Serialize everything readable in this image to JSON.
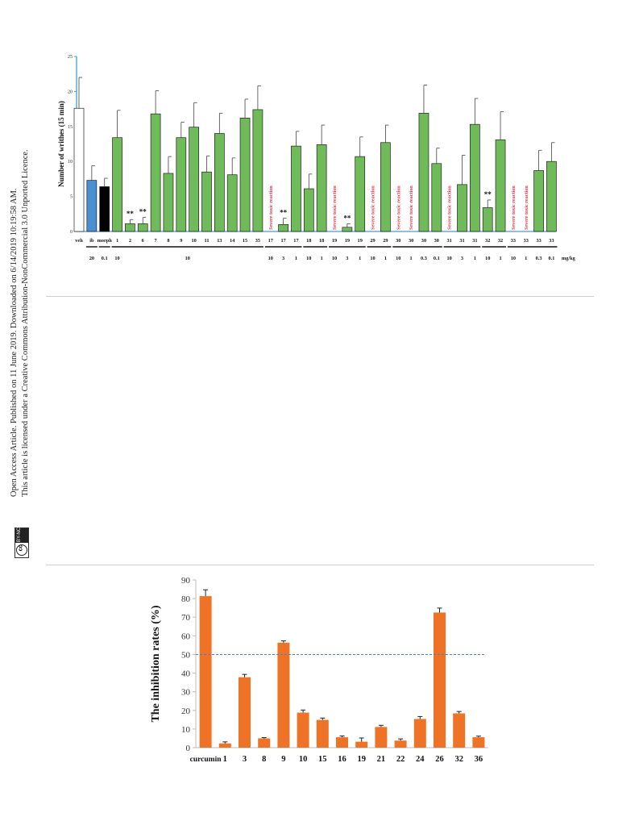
{
  "side": {
    "line1": "Open Access Article. Published on 11 June 2019. Downloaded on 6/14/2019 10:19:58 AM.",
    "line2": "This article is licensed under a Creative Commons Attribution-NonCommercial 3.0 Unported Licence.",
    "badge_cc": "cc",
    "badge_text": "BY-NC"
  },
  "chart_data": [
    {
      "type": "bar",
      "ylabel": "Number   of writhes (15 min)",
      "ylim": [
        0,
        25
      ],
      "yticks": [
        0,
        5,
        10,
        15,
        20,
        25
      ],
      "unit_label": "mg/kg",
      "toxic_label": "Severe toxic reaction",
      "colors": {
        "veh": "#ffffff",
        "ib": "#4a8fd0",
        "morph": "#000000",
        "compound": "#6fba59",
        "toxic": "#e8364a",
        "axis": "#3aa0d8"
      },
      "bars": [
        {
          "cat": "veh",
          "dose": "",
          "value": 17.6,
          "err": 4.4,
          "color": "veh"
        },
        {
          "cat": "ib",
          "dose": "20",
          "value": 7.3,
          "err": 2.1,
          "color": "ib"
        },
        {
          "cat": "morph",
          "dose": "0.1",
          "value": 6.4,
          "err": 1.2,
          "color": "morph"
        },
        {
          "cat": "1",
          "dose": "10",
          "value": 13.4,
          "err": 3.9,
          "color": "compound"
        },
        {
          "cat": "2",
          "dose": "10",
          "value": 1.1,
          "err": 0.6,
          "color": "compound",
          "sig": "**"
        },
        {
          "cat": "6",
          "dose": "10",
          "value": 1.1,
          "err": 0.9,
          "color": "compound",
          "sig": "**"
        },
        {
          "cat": "7",
          "dose": "10",
          "value": 16.8,
          "err": 3.3,
          "color": "compound"
        },
        {
          "cat": "8",
          "dose": "10",
          "value": 8.3,
          "err": 2.4,
          "color": "compound"
        },
        {
          "cat": "9",
          "dose": "10",
          "value": 13.4,
          "err": 2.2,
          "color": "compound"
        },
        {
          "cat": "10",
          "dose": "10",
          "value": 14.9,
          "err": 3.5,
          "color": "compound"
        },
        {
          "cat": "11",
          "dose": "10",
          "value": 8.5,
          "err": 2.3,
          "color": "compound"
        },
        {
          "cat": "13",
          "dose": "10",
          "value": 14.0,
          "err": 2.9,
          "color": "compound"
        },
        {
          "cat": "14",
          "dose": "10",
          "value": 8.1,
          "err": 2.4,
          "color": "compound"
        },
        {
          "cat": "15",
          "dose": "10",
          "value": 16.2,
          "err": 2.7,
          "color": "compound"
        },
        {
          "cat": "35",
          "dose": "10",
          "value": 17.4,
          "err": 3.4,
          "color": "compound"
        },
        {
          "cat": "17",
          "dose": "10",
          "value": 0,
          "toxic": true
        },
        {
          "cat": "17",
          "dose": "3",
          "value": 1.0,
          "err": 0.9,
          "color": "compound",
          "sig": "**"
        },
        {
          "cat": "17",
          "dose": "1",
          "value": 12.2,
          "err": 2.1,
          "color": "compound"
        },
        {
          "cat": "18",
          "dose": "10",
          "value": 6.1,
          "err": 2.1,
          "color": "compound"
        },
        {
          "cat": "18",
          "dose": "1",
          "value": 12.4,
          "err": 2.8,
          "color": "compound"
        },
        {
          "cat": "19",
          "dose": "10",
          "value": 0,
          "toxic": true
        },
        {
          "cat": "19",
          "dose": "3",
          "value": 0.6,
          "err": 0.5,
          "color": "compound",
          "sig": "**"
        },
        {
          "cat": "19",
          "dose": "1",
          "value": 10.7,
          "err": 2.8,
          "color": "compound"
        },
        {
          "cat": "29",
          "dose": "10",
          "value": 0,
          "toxic": true
        },
        {
          "cat": "29",
          "dose": "1",
          "value": 12.7,
          "err": 2.5,
          "color": "compound"
        },
        {
          "cat": "30",
          "dose": "10",
          "value": 0,
          "toxic": true
        },
        {
          "cat": "30",
          "dose": "1",
          "value": 0,
          "toxic": true
        },
        {
          "cat": "30",
          "dose": "0.3",
          "value": 16.9,
          "err": 4.0,
          "color": "compound"
        },
        {
          "cat": "30",
          "dose": "0.1",
          "value": 9.7,
          "err": 2.2,
          "color": "compound"
        },
        {
          "cat": "31",
          "dose": "10",
          "value": 0,
          "toxic": true
        },
        {
          "cat": "31",
          "dose": "3",
          "value": 6.7,
          "err": 4.2,
          "color": "compound"
        },
        {
          "cat": "31",
          "dose": "1",
          "value": 15.3,
          "err": 3.7,
          "color": "compound"
        },
        {
          "cat": "32",
          "dose": "10",
          "value": 3.4,
          "err": 1.1,
          "color": "compound",
          "sig": "**"
        },
        {
          "cat": "32",
          "dose": "1",
          "value": 13.1,
          "err": 4.0,
          "color": "compound"
        },
        {
          "cat": "33",
          "dose": "10",
          "value": 0,
          "toxic": true
        },
        {
          "cat": "33",
          "dose": "1",
          "value": 0,
          "toxic": true
        },
        {
          "cat": "33",
          "dose": "0.3",
          "value": 8.7,
          "err": 2.9,
          "color": "compound"
        },
        {
          "cat": "33",
          "dose": "0.1",
          "value": 10.0,
          "err": 2.7,
          "color": "compound"
        }
      ],
      "groups": [
        {
          "from": 1,
          "to": 1
        },
        {
          "from": 2,
          "to": 2
        },
        {
          "from": 3,
          "to": 14,
          "label": "10"
        },
        {
          "from": 15,
          "to": 17
        },
        {
          "from": 18,
          "to": 19
        },
        {
          "from": 20,
          "to": 22
        },
        {
          "from": 23,
          "to": 24
        },
        {
          "from": 25,
          "to": 28
        },
        {
          "from": 29,
          "to": 31
        },
        {
          "from": 32,
          "to": 33
        },
        {
          "from": 34,
          "to": 37
        }
      ]
    },
    {
      "type": "bar",
      "ylabel": "The inhibition rates (%)",
      "ylim": [
        0,
        90
      ],
      "yticks": [
        0,
        10,
        20,
        30,
        40,
        50,
        60,
        70,
        80,
        90
      ],
      "reference_line": 50,
      "colors": {
        "bar": "#ee7326",
        "ref": "#4a7fd0",
        "axis": "#bcbcbc"
      },
      "categories": [
        "curcumin",
        "1",
        "3",
        "8",
        "9",
        "10",
        "15",
        "16",
        "19",
        "21",
        "22",
        "24",
        "26",
        "32",
        "36"
      ],
      "values": [
        81.3,
        2.3,
        37.8,
        5.0,
        56.3,
        18.8,
        14.9,
        5.6,
        3.2,
        11.1,
        3.8,
        15.4,
        72.5,
        18.4,
        5.6
      ],
      "errors": [
        3.4,
        0.8,
        1.5,
        0.4,
        1.0,
        1.4,
        1.0,
        0.7,
        2.0,
        0.9,
        0.9,
        1.3,
        2.4,
        1.0,
        0.6
      ]
    }
  ]
}
